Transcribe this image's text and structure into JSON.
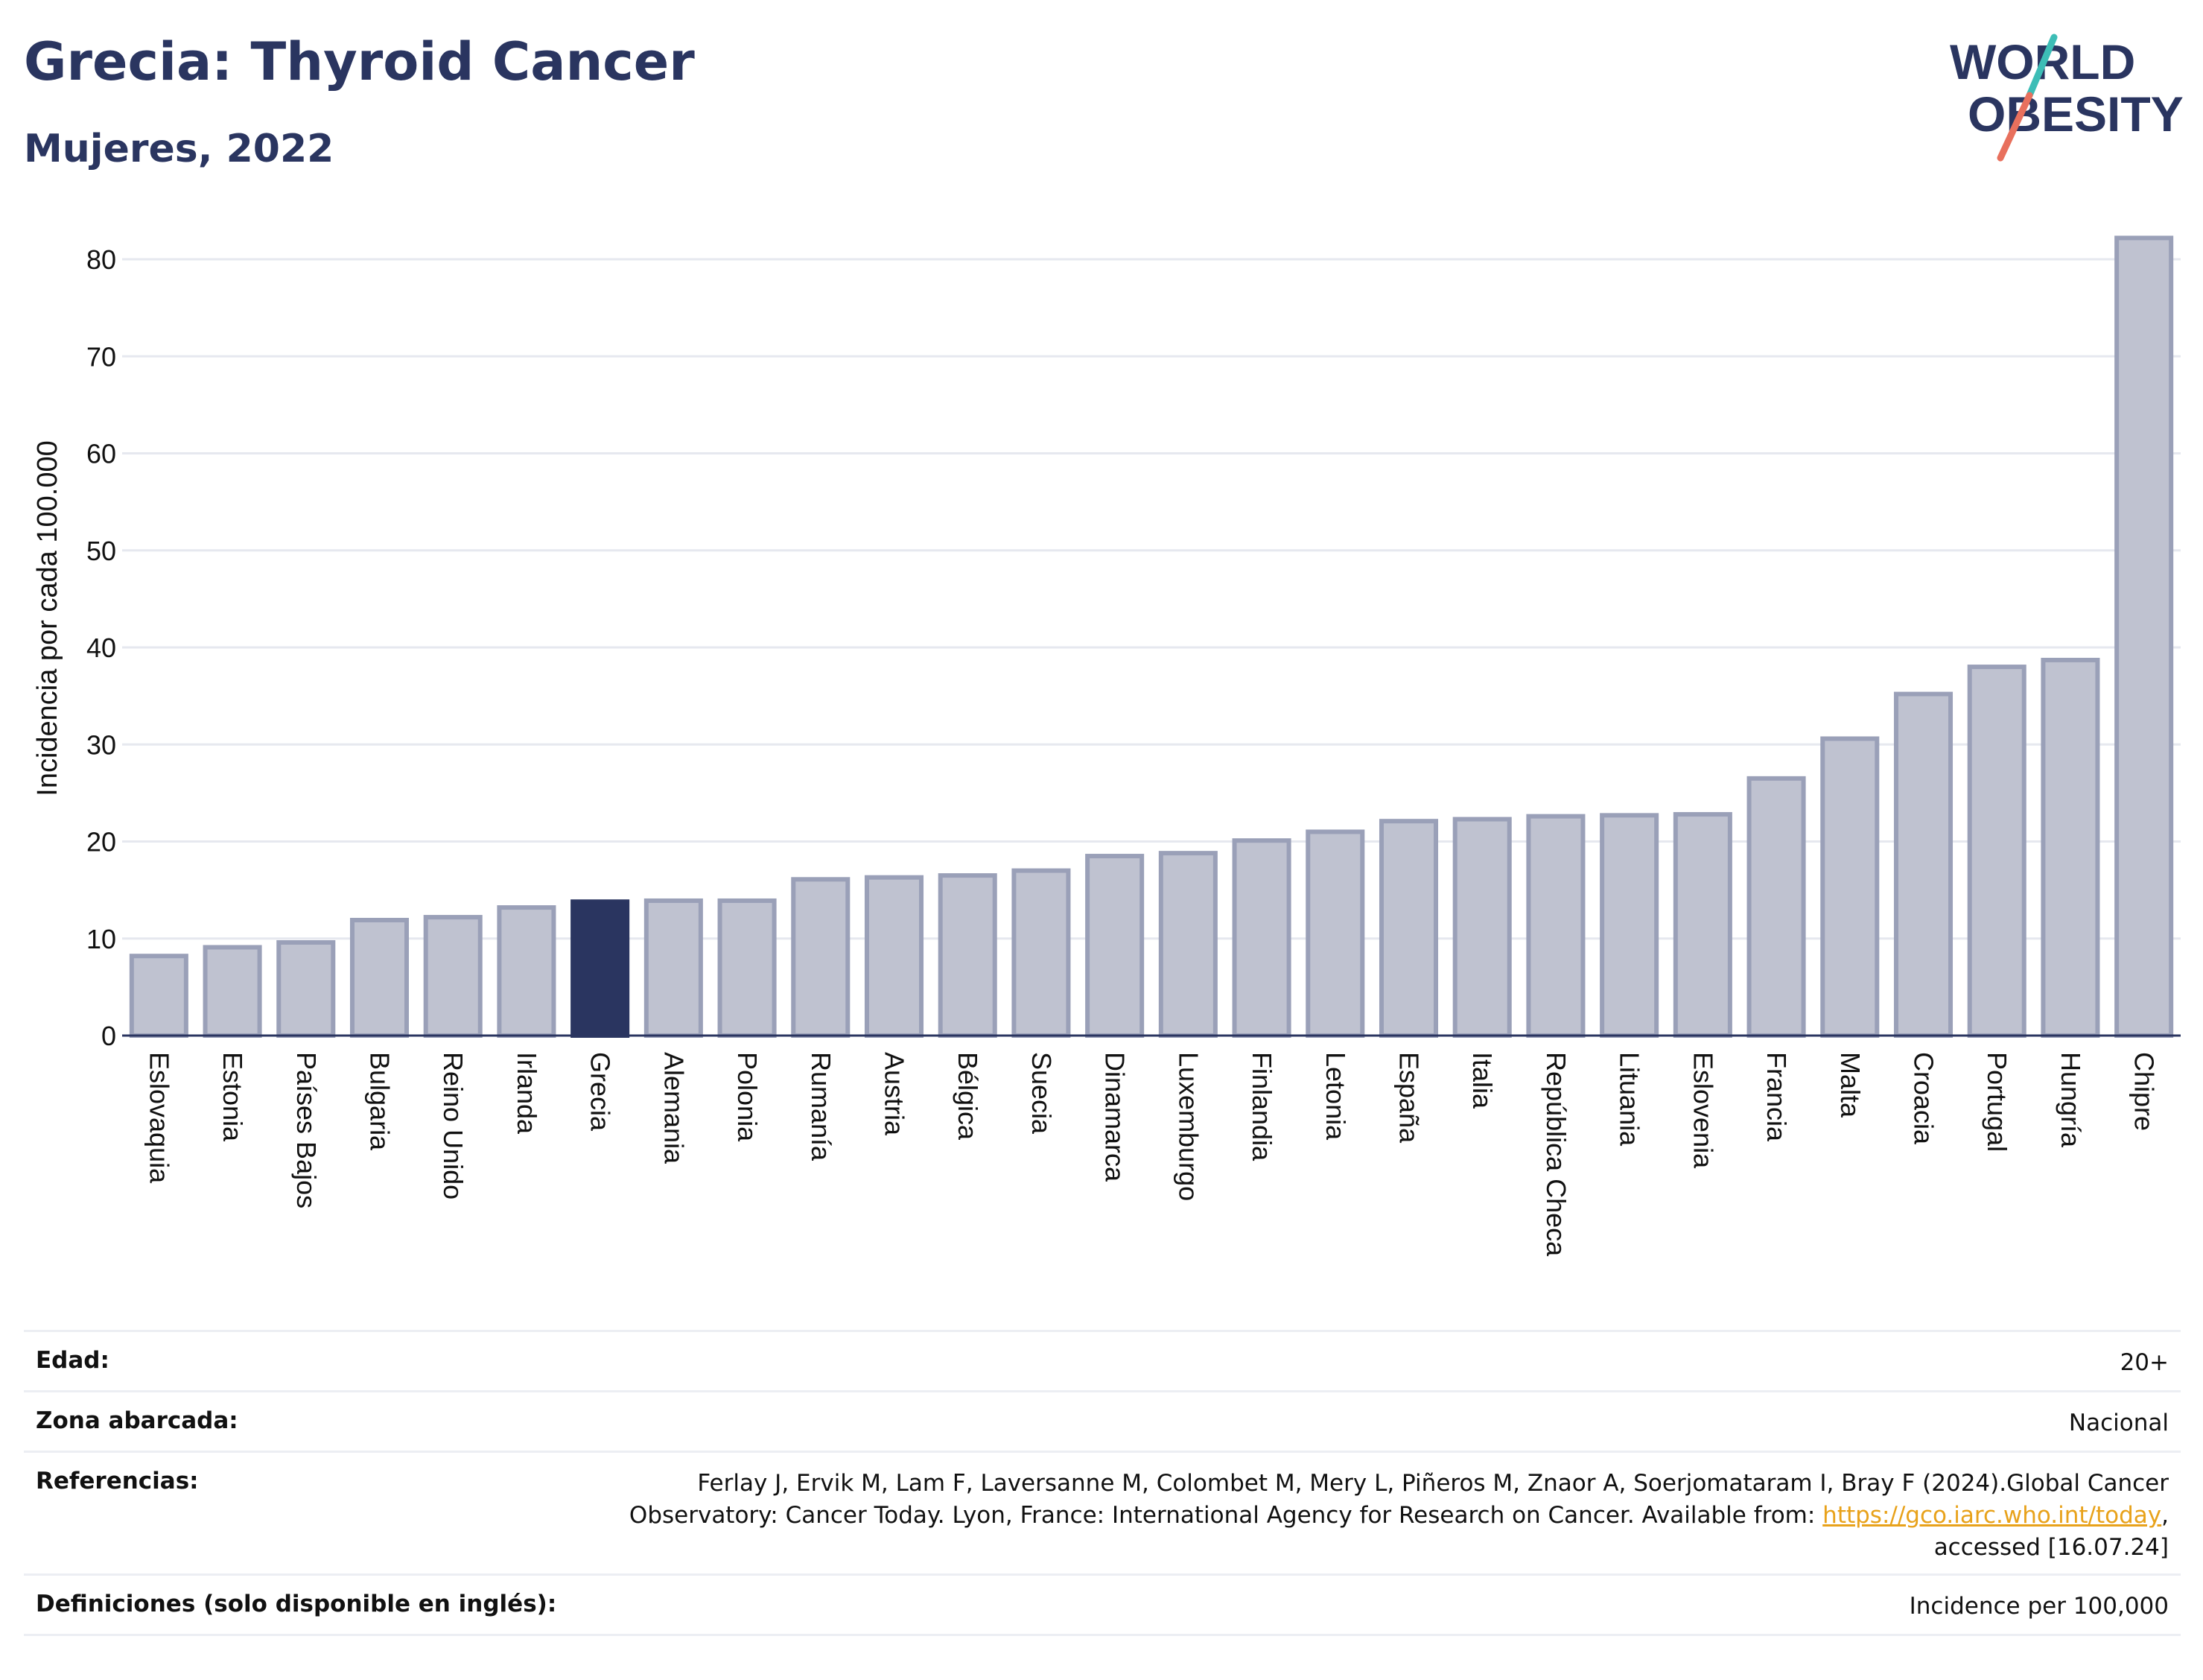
{
  "header": {
    "title": "Grecia: Thyroid Cancer",
    "subtitle": "Mujeres, 2022",
    "logo_line1": "WORLD",
    "logo_line2": "OBESITY"
  },
  "colors": {
    "bar": "#bfc2d0",
    "bar_border": "#9aa0b8",
    "highlight": "#2a3560",
    "grid": "#e6e8ef",
    "logo_text": "#2a3560",
    "logo_teal": "#3dbdb6",
    "logo_coral": "#e8705d",
    "link": "#e8a21b"
  },
  "chart_data": {
    "type": "bar",
    "ylabel": "Incidencia por cada 100.000",
    "xlabel": "",
    "ylim": [
      0,
      82
    ],
    "yticks": [
      0,
      10,
      20,
      30,
      40,
      50,
      60,
      70,
      80
    ],
    "grid": true,
    "highlight_category": "Grecia",
    "categories": [
      "Eslovaquia",
      "Estonia",
      "Países Bajos",
      "Bulgaria",
      "Reino Unido",
      "Irlanda",
      "Grecia",
      "Alemania",
      "Polonia",
      "Rumanía",
      "Austria",
      "Bélgica",
      "Suecia",
      "Dinamarca",
      "Luxemburgo",
      "Finlandia",
      "Letonia",
      "España",
      "Italia",
      "República Checa",
      "Lituania",
      "Eslovenia",
      "Francia",
      "Malta",
      "Croacia",
      "Portugal",
      "Hungría",
      "Chipre"
    ],
    "values": [
      8.2,
      9.1,
      9.6,
      11.9,
      12.2,
      13.2,
      13.8,
      13.9,
      13.9,
      16.1,
      16.3,
      16.5,
      17.0,
      18.5,
      18.8,
      20.1,
      21.0,
      22.1,
      22.3,
      22.6,
      22.7,
      22.8,
      26.5,
      30.6,
      35.2,
      38.0,
      38.7,
      82.2
    ]
  },
  "info": {
    "age_label": "Edad:",
    "age_value": "20+",
    "area_label": "Zona abarcada:",
    "area_value": "Nacional",
    "refs_label": "Referencias:",
    "refs_text_1": "Ferlay J, Ervik M, Lam F, Laversanne M, Colombet M, Mery L, Piñeros M, Znaor A, Soerjomataram I, Bray F (2024).Global Cancer",
    "refs_text_2": "Observatory: Cancer Today. Lyon, France: International Agency for Research on Cancer. Available from: ",
    "refs_link": "https://gco.iarc.who.int/today",
    "refs_text_3": ",",
    "refs_text_4": "accessed [16.07.24]",
    "defs_label": "Definiciones (solo disponible en inglés):",
    "defs_value": "Incidence per 100,000"
  }
}
